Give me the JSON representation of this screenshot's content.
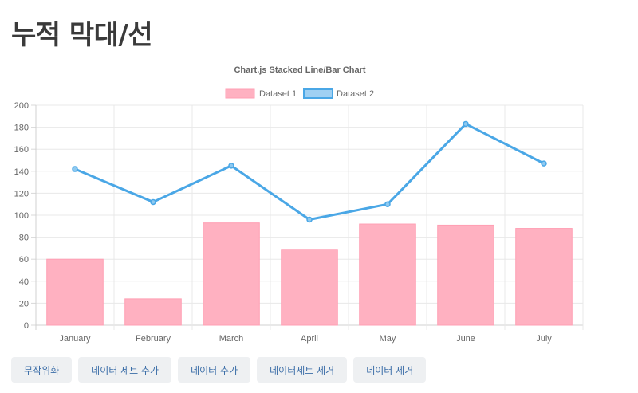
{
  "page": {
    "heading": "누적 막대/선"
  },
  "buttons": [
    {
      "id": "randomize",
      "label": "무작위화"
    },
    {
      "id": "add-dataset",
      "label": "데이터 세트 추가"
    },
    {
      "id": "add-data",
      "label": "데이터 추가"
    },
    {
      "id": "remove-dataset",
      "label": "데이터세트 제거"
    },
    {
      "id": "remove-data",
      "label": "데이터 제거"
    }
  ],
  "chart_data": {
    "type": "bar",
    "title": "Chart.js Stacked Line/Bar Chart",
    "categories": [
      "January",
      "February",
      "March",
      "April",
      "May",
      "June",
      "July"
    ],
    "series": [
      {
        "name": "Dataset 1",
        "type": "bar",
        "values": [
          60,
          24,
          93,
          69,
          92,
          91,
          88
        ],
        "color": "#ffb1c1"
      },
      {
        "name": "Dataset 2",
        "type": "line",
        "values": [
          142,
          112,
          145,
          96,
          110,
          183,
          147
        ],
        "color": "#4aa7e6"
      }
    ],
    "ylim": [
      0,
      200
    ],
    "yticks": [
      0,
      20,
      40,
      60,
      80,
      100,
      120,
      140,
      160,
      180,
      200
    ],
    "grid": true,
    "legend_position": "top"
  }
}
